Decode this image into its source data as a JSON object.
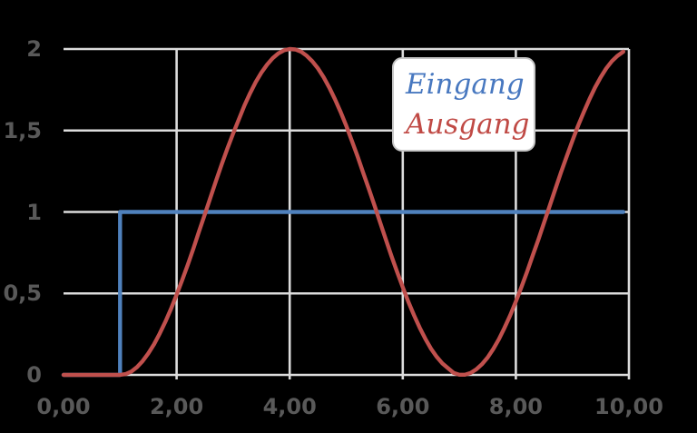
{
  "colors": {
    "background": "#000000",
    "gridline": "#dcdcdc",
    "tick_label": "#595959",
    "legend_bg": "#ffffff",
    "legend_border": "#c6c6c6",
    "eingang_blue": "#4f81bd",
    "ausgang_red": "#c0504d"
  },
  "legend": {
    "items": [
      {
        "label": "Eingang",
        "color": "#4878c0"
      },
      {
        "label": "Ausgang",
        "color": "#c04a45"
      }
    ]
  },
  "chart_data": {
    "type": "line",
    "title": "",
    "xlabel": "",
    "ylabel": "",
    "xlim": [
      0,
      10
    ],
    "ylim": [
      0,
      2
    ],
    "grid": true,
    "legend_position": "top-right",
    "x_tick_values": [
      0,
      2,
      4,
      6,
      8,
      10
    ],
    "x_tick_labels": [
      "0,00",
      "2,00",
      "4,00",
      "6,00",
      "8,00",
      "10,00"
    ],
    "y_tick_values": [
      0,
      0.5,
      1,
      1.5,
      2
    ],
    "y_tick_labels": [
      "0",
      "0,5",
      "1",
      "1,5",
      "2"
    ],
    "x_gridline_values": [
      2,
      4,
      6,
      8,
      10
    ],
    "y_gridline_values": [
      0,
      0.5,
      1,
      1.5,
      2
    ],
    "series": [
      {
        "name": "Eingang",
        "color": "#4f81bd",
        "points": [
          [
            0,
            0
          ],
          [
            1,
            0
          ],
          [
            1,
            1
          ],
          [
            9.9,
            1
          ]
        ]
      },
      {
        "name": "Ausgang",
        "color": "#c0504d",
        "points": [
          [
            0,
            0
          ],
          [
            1,
            0
          ],
          [
            1.1,
            0.005
          ],
          [
            1.2,
            0.021
          ],
          [
            1.3,
            0.048
          ],
          [
            1.4,
            0.085
          ],
          [
            1.5,
            0.132
          ],
          [
            1.6,
            0.188
          ],
          [
            1.7,
            0.253
          ],
          [
            1.8,
            0.325
          ],
          [
            1.9,
            0.405
          ],
          [
            2,
            0.492
          ],
          [
            2.1,
            0.583
          ],
          [
            2.2,
            0.679
          ],
          [
            2.3,
            0.779
          ],
          [
            2.4,
            0.884
          ],
          [
            2.5,
            0.987
          ],
          [
            2.6,
            1.091
          ],
          [
            2.7,
            1.194
          ],
          [
            2.8,
            1.294
          ],
          [
            2.9,
            1.391
          ],
          [
            3,
            1.482
          ],
          [
            3.1,
            1.567
          ],
          [
            3.2,
            1.654
          ],
          [
            3.3,
            1.729
          ],
          [
            3.4,
            1.797
          ],
          [
            3.5,
            1.855
          ],
          [
            3.6,
            1.904
          ],
          [
            3.7,
            1.944
          ],
          [
            3.8,
            1.973
          ],
          [
            3.9,
            1.992
          ],
          [
            4,
            2
          ],
          [
            4.1,
            1.997
          ],
          [
            4.2,
            1.984
          ],
          [
            4.3,
            1.959
          ],
          [
            4.4,
            1.925
          ],
          [
            4.5,
            1.881
          ],
          [
            4.6,
            1.827
          ],
          [
            4.7,
            1.764
          ],
          [
            4.8,
            1.693
          ],
          [
            4.9,
            1.614
          ],
          [
            5,
            1.529
          ],
          [
            5.1,
            1.437
          ],
          [
            5.2,
            1.341
          ],
          [
            5.3,
            1.24
          ],
          [
            5.4,
            1.142
          ],
          [
            5.5,
            1.039
          ],
          [
            5.6,
            0.935
          ],
          [
            5.7,
            0.832
          ],
          [
            5.8,
            0.73
          ],
          [
            5.9,
            0.632
          ],
          [
            6,
            0.538
          ],
          [
            6.1,
            0.448
          ],
          [
            6.2,
            0.365
          ],
          [
            6.3,
            0.289
          ],
          [
            6.4,
            0.221
          ],
          [
            6.5,
            0.161
          ],
          [
            6.6,
            0.111
          ],
          [
            6.7,
            0.071
          ],
          [
            6.8,
            0.041
          ],
          [
            6.9,
            0.012
          ],
          [
            7,
            0.001
          ],
          [
            7.1,
            0.001
          ],
          [
            7.2,
            0.012
          ],
          [
            7.3,
            0.034
          ],
          [
            7.4,
            0.065
          ],
          [
            7.5,
            0.107
          ],
          [
            7.6,
            0.159
          ],
          [
            7.7,
            0.219
          ],
          [
            7.8,
            0.289
          ],
          [
            7.9,
            0.366
          ],
          [
            8,
            0.45
          ],
          [
            8.1,
            0.54
          ],
          [
            8.2,
            0.635
          ],
          [
            8.3,
            0.735
          ],
          [
            8.4,
            0.832
          ],
          [
            8.5,
            0.935
          ],
          [
            8.6,
            1.039
          ],
          [
            8.7,
            1.142
          ],
          [
            8.8,
            1.244
          ],
          [
            8.9,
            1.342
          ],
          [
            9,
            1.437
          ],
          [
            9.1,
            1.528
          ],
          [
            9.2,
            1.612
          ],
          [
            9.3,
            1.691
          ],
          [
            9.4,
            1.763
          ],
          [
            9.5,
            1.827
          ],
          [
            9.6,
            1.882
          ],
          [
            9.7,
            1.926
          ],
          [
            9.8,
            1.959
          ],
          [
            9.9,
            1.984
          ]
        ]
      }
    ]
  }
}
